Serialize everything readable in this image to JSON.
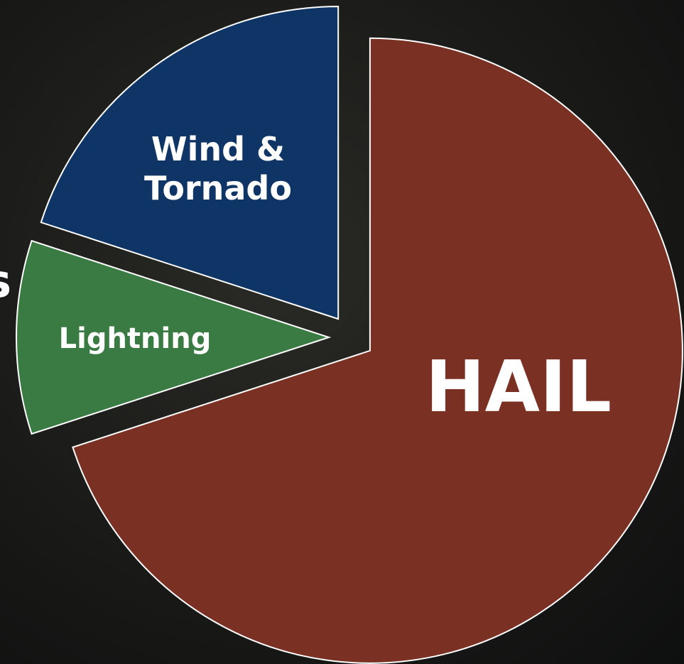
{
  "chart_data": {
    "type": "pie",
    "background_text": "s",
    "categories": [
      "HAIL",
      "Lightning",
      "Wind & Tornado"
    ],
    "values": [
      70,
      10,
      20
    ],
    "colors": [
      "#7a3124",
      "#3a7b44",
      "#0f3566"
    ]
  }
}
